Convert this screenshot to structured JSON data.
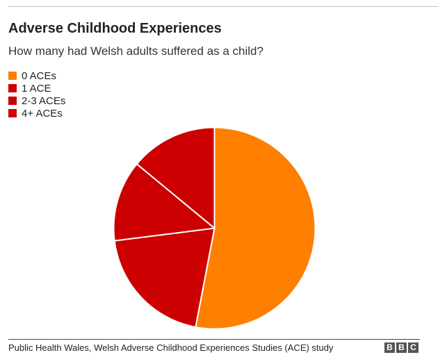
{
  "header": {
    "title": "Adverse Childhood Experiences",
    "subtitle": "How many had Welsh adults suffered as a child?"
  },
  "chart_data": {
    "type": "pie",
    "title": "Adverse Childhood Experiences",
    "subtitle": "How many had Welsh adults suffered as a child?",
    "legend_position": "top-left",
    "series": [
      {
        "name": "0 ACEs",
        "value": 53,
        "color": "#ff7f00"
      },
      {
        "name": "1 ACE",
        "value": 20,
        "color": "#cc0000"
      },
      {
        "name": "2-3 ACEs",
        "value": 13,
        "color": "#cc0000"
      },
      {
        "name": "4+ ACEs",
        "value": 14,
        "color": "#cc0000"
      }
    ]
  },
  "footer": {
    "source": "Public Health Wales, Welsh Adverse Childhood Experiences Studies (ACE) study",
    "logo_letters": [
      "B",
      "B",
      "C"
    ]
  }
}
